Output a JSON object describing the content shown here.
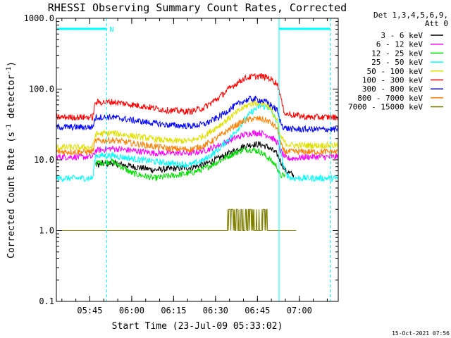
{
  "chart_data": {
    "type": "line",
    "title": "RHESSI Observing Summary Count Rates, Corrected",
    "xlabel": "Start Time (23-Jul-09 05:33:02)",
    "ylabel_main": "Corrected Count Rate (s",
    "ylabel_sup1": "-1",
    "ylabel_mid": " detector",
    "ylabel_sup2": "-1",
    "ylabel_end": ")",
    "y_scale": "log",
    "ylim": [
      0.1,
      1000
    ],
    "x_unit": "minutes after 05:33:02",
    "xlim": [
      0,
      100.9
    ],
    "y_ticks": [
      {
        "v": 1000,
        "label": "1000.0"
      },
      {
        "v": 100,
        "label": "100.0"
      },
      {
        "v": 10,
        "label": "10.0"
      },
      {
        "v": 1,
        "label": "1.0"
      },
      {
        "v": 0.1,
        "label": "0.1"
      }
    ],
    "x_ticks": [
      {
        "t": 11.97,
        "label": "05:45"
      },
      {
        "t": 26.97,
        "label": "06:00"
      },
      {
        "t": 41.97,
        "label": "06:15"
      },
      {
        "t": 56.97,
        "label": "06:30"
      },
      {
        "t": 71.97,
        "label": "06:45"
      },
      {
        "t": 86.97,
        "label": "07:00"
      }
    ],
    "legend_header": [
      "Det 1,3,4,5,6,9,",
      "Att 0"
    ],
    "legend": [
      {
        "label": "3 - 6 keV",
        "color": "#000000"
      },
      {
        "label": "6 - 12 keV",
        "color": "#ff00ff"
      },
      {
        "label": "12 - 25 keV",
        "color": "#00dd00"
      },
      {
        "label": "25 - 50 keV",
        "color": "#00ffff"
      },
      {
        "label": "50 - 100 keV",
        "color": "#e0e000"
      },
      {
        "label": "100 - 300 keV",
        "color": "#ff0000"
      },
      {
        "label": "300 - 800 keV",
        "color": "#0000ff"
      },
      {
        "label": "800 - 7000 keV",
        "color": "#ff8000"
      },
      {
        "label": "7000 - 15000 keV",
        "color": "#808000"
      }
    ],
    "series": [
      {
        "name": "3 - 6 keV",
        "color": "#000000",
        "x": [
          0,
          13,
          14,
          20,
          35,
          48,
          53,
          58,
          63,
          67,
          70,
          73,
          76,
          79,
          80,
          82,
          85,
          90,
          101
        ],
        "y": [
          null,
          null,
          8.5,
          9,
          7.2,
          7.8,
          8.6,
          10.5,
          13,
          15.5,
          16.5,
          16.5,
          15,
          12,
          10,
          7,
          6,
          null,
          null
        ]
      },
      {
        "name": "6 - 12 keV",
        "color": "#ff00ff",
        "x": [
          0,
          13,
          14,
          20,
          35,
          48,
          53,
          58,
          63,
          67,
          70,
          73,
          76,
          79,
          80,
          82,
          85,
          90,
          101
        ],
        "y": [
          11,
          11,
          13.5,
          14.5,
          12.5,
          12.5,
          13.5,
          16,
          19.5,
          22.5,
          24,
          24,
          22,
          18,
          14,
          10.5,
          10.5,
          11,
          11
        ]
      },
      {
        "name": "12 - 25 keV",
        "color": "#00dd00",
        "x": [
          0,
          13,
          14,
          20,
          27,
          35,
          48,
          53,
          58,
          63,
          67,
          70,
          73,
          76,
          79,
          80,
          82,
          84,
          101
        ],
        "y": [
          null,
          null,
          9,
          9.5,
          6.5,
          5.5,
          6.5,
          7.5,
          9.5,
          12,
          14,
          14,
          13,
          10.5,
          8,
          6,
          6,
          null,
          null
        ]
      },
      {
        "name": "25 - 50 keV",
        "color": "#00ffff",
        "x": [
          0,
          13,
          14,
          20,
          30,
          40,
          48,
          53,
          58,
          63,
          67,
          70,
          73,
          76,
          79,
          80,
          81,
          82,
          84,
          90,
          101
        ],
        "y": [
          5.5,
          5.5,
          11.5,
          11.5,
          10,
          9,
          8.5,
          10,
          14,
          22,
          35,
          48,
          58,
          55,
          35,
          18,
          9,
          6.5,
          5.5,
          5.5,
          5.5
        ]
      },
      {
        "name": "50 - 100 keV",
        "color": "#e0e000",
        "x": [
          0,
          13,
          14,
          20,
          30,
          40,
          48,
          53,
          58,
          63,
          67,
          70,
          73,
          76,
          79,
          80,
          82,
          85,
          90,
          101
        ],
        "y": [
          15,
          15,
          23,
          24,
          21,
          18.5,
          18.5,
          22,
          30,
          42,
          55,
          63,
          65,
          58,
          35,
          22,
          17,
          16,
          16,
          16
        ]
      },
      {
        "name": "100 - 300 keV",
        "color": "#ff0000",
        "x": [
          0,
          13,
          14,
          20,
          30,
          40,
          48,
          53,
          58,
          63,
          67,
          70,
          73,
          76,
          79,
          80,
          81,
          82,
          85,
          90,
          101
        ],
        "y": [
          40,
          40,
          65,
          66,
          58,
          50,
          48,
          55,
          75,
          110,
          140,
          150,
          152,
          145,
          120,
          90,
          55,
          45,
          43,
          40,
          40
        ]
      },
      {
        "name": "300 - 800 keV",
        "color": "#0000ff",
        "x": [
          0,
          13,
          14,
          20,
          30,
          40,
          48,
          53,
          58,
          63,
          67,
          70,
          73,
          76,
          79,
          80,
          81,
          82,
          85,
          90,
          101
        ],
        "y": [
          29,
          29,
          40,
          40,
          35,
          31,
          30,
          32,
          40,
          55,
          68,
          73,
          70,
          63,
          50,
          36,
          30,
          28,
          27,
          27,
          27
        ]
      },
      {
        "name": "800 - 7000 keV",
        "color": "#ff8000",
        "x": [
          0,
          13,
          14,
          20,
          30,
          40,
          48,
          53,
          58,
          63,
          67,
          70,
          73,
          76,
          79,
          80,
          81,
          82,
          85,
          90,
          101
        ],
        "y": [
          13,
          13,
          18.5,
          19,
          16.5,
          14.5,
          14,
          16,
          21,
          29,
          35,
          38,
          38,
          35,
          28,
          19,
          14,
          13,
          13,
          13,
          13
        ]
      },
      {
        "name": "7000 - 15000 keV",
        "color": "#808000",
        "x": [
          0,
          13,
          55,
          61,
          62,
          75,
          76,
          86,
          87,
          101
        ],
        "y": [
          1,
          1,
          1,
          1,
          2,
          2,
          1,
          1,
          null,
          null
        ]
      }
    ],
    "vlines": [
      {
        "t": 0,
        "style": "solid"
      },
      {
        "t": 18.0,
        "style": "dashed"
      },
      {
        "t": 79.7,
        "style": "solid"
      },
      {
        "t": 98.0,
        "style": "dashed"
      }
    ],
    "night_bars": [
      {
        "t0": 0,
        "t1": 18.0,
        "label": "N"
      },
      {
        "t0": 79.7,
        "t1": 98.0,
        "label": ""
      }
    ],
    "footer_date": "15-Oct-2021 07:56",
    "colors": {
      "axis": "#000000",
      "markers": "#00ffff"
    }
  }
}
